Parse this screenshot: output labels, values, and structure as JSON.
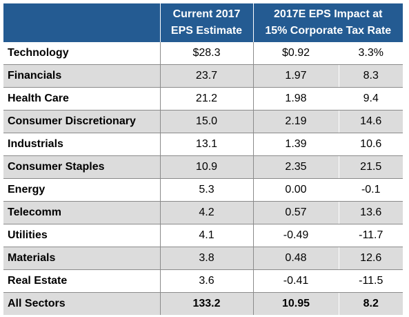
{
  "header": {
    "col_current_eps_line1": "Current 2017",
    "col_current_eps_line2": "EPS Estimate",
    "col_impact_line1": "2017E EPS Impact at",
    "col_impact_line2": "15% Corporate Tax Rate"
  },
  "rows": [
    {
      "sector": "Technology",
      "eps": "$28.3",
      "impact": "$0.92",
      "pct": "3.3%"
    },
    {
      "sector": "Financials",
      "eps": "23.7",
      "impact": "1.97",
      "pct": "8.3"
    },
    {
      "sector": "Health Care",
      "eps": "21.2",
      "impact": "1.98",
      "pct": "9.4"
    },
    {
      "sector": "Consumer Discretionary",
      "eps": "15.0",
      "impact": "2.19",
      "pct": "14.6"
    },
    {
      "sector": "Industrials",
      "eps": "13.1",
      "impact": "1.39",
      "pct": "10.6"
    },
    {
      "sector": "Consumer Staples",
      "eps": "10.9",
      "impact": "2.35",
      "pct": "21.5"
    },
    {
      "sector": "Energy",
      "eps": "5.3",
      "impact": "0.00",
      "pct": "-0.1"
    },
    {
      "sector": "Telecomm",
      "eps": "4.2",
      "impact": "0.57",
      "pct": "13.6"
    },
    {
      "sector": "Utilities",
      "eps": "4.1",
      "impact": "-0.49",
      "pct": "-11.7"
    },
    {
      "sector": "Materials",
      "eps": "3.8",
      "impact": "0.48",
      "pct": "12.6"
    },
    {
      "sector": "Real Estate",
      "eps": "3.6",
      "impact": "-0.41",
      "pct": "-11.5"
    },
    {
      "sector": "All Sectors",
      "eps": "133.2",
      "impact": "10.95",
      "pct": "8.2"
    }
  ],
  "colors": {
    "header_bg": "#245b92",
    "stripe_bg": "#dcdcdc"
  }
}
